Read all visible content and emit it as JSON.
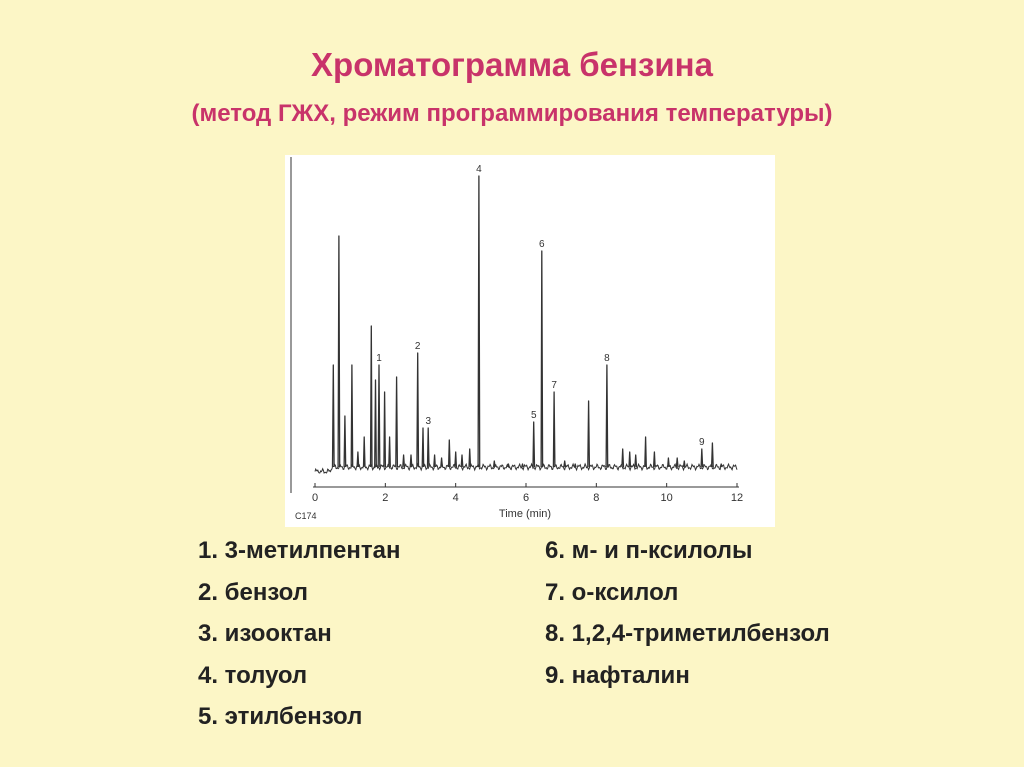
{
  "slide": {
    "title": "Хроматограмма бензина",
    "subtitle": "(метод ГЖХ,  режим программирования температуры)"
  },
  "colors": {
    "background": "#fcf6c6",
    "title": "#c8336a",
    "trace": "#333333"
  },
  "chart_data": {
    "type": "line",
    "xlabel": "Time (min)",
    "ylabel": "",
    "xlim": [
      0,
      12
    ],
    "ylim": [
      0,
      1
    ],
    "x_ticks": [
      0,
      2,
      4,
      6,
      8,
      10,
      12
    ],
    "x_tick_labels": [
      "0",
      "2",
      "4",
      "6",
      "8",
      "10",
      "12"
    ],
    "corner_label": "C174",
    "grid": false,
    "baseline": 0.02,
    "peak_width_min": 0.022,
    "peaks": [
      {
        "x": 0.52,
        "h": 0.36
      },
      {
        "x": 0.68,
        "h": 0.79
      },
      {
        "x": 0.85,
        "h": 0.19
      },
      {
        "x": 1.05,
        "h": 0.36
      },
      {
        "x": 1.22,
        "h": 0.07
      },
      {
        "x": 1.4,
        "h": 0.12
      },
      {
        "x": 1.6,
        "h": 0.49
      },
      {
        "x": 1.72,
        "h": 0.31
      },
      {
        "x": 1.82,
        "h": 0.36,
        "label": "1"
      },
      {
        "x": 1.98,
        "h": 0.27
      },
      {
        "x": 2.12,
        "h": 0.12
      },
      {
        "x": 2.32,
        "h": 0.32
      },
      {
        "x": 2.52,
        "h": 0.06
      },
      {
        "x": 2.73,
        "h": 0.06
      },
      {
        "x": 2.92,
        "h": 0.4,
        "label": "2"
      },
      {
        "x": 3.07,
        "h": 0.15
      },
      {
        "x": 3.22,
        "h": 0.15,
        "label": "3"
      },
      {
        "x": 3.4,
        "h": 0.06
      },
      {
        "x": 3.6,
        "h": 0.05
      },
      {
        "x": 3.82,
        "h": 0.11
      },
      {
        "x": 4.0,
        "h": 0.07
      },
      {
        "x": 4.18,
        "h": 0.06
      },
      {
        "x": 4.4,
        "h": 0.08
      },
      {
        "x": 4.66,
        "h": 0.99,
        "label": "4"
      },
      {
        "x": 5.1,
        "h": 0.04
      },
      {
        "x": 5.5,
        "h": 0.03
      },
      {
        "x": 5.9,
        "h": 0.03
      },
      {
        "x": 6.22,
        "h": 0.17,
        "label": "5"
      },
      {
        "x": 6.45,
        "h": 0.74,
        "label": "6"
      },
      {
        "x": 6.8,
        "h": 0.27,
        "label": "7"
      },
      {
        "x": 7.1,
        "h": 0.04
      },
      {
        "x": 7.4,
        "h": 0.03
      },
      {
        "x": 7.78,
        "h": 0.24
      },
      {
        "x": 8.3,
        "h": 0.36,
        "label": "8"
      },
      {
        "x": 8.75,
        "h": 0.08
      },
      {
        "x": 8.95,
        "h": 0.07
      },
      {
        "x": 9.12,
        "h": 0.06
      },
      {
        "x": 9.4,
        "h": 0.12
      },
      {
        "x": 9.65,
        "h": 0.07
      },
      {
        "x": 10.05,
        "h": 0.05
      },
      {
        "x": 10.3,
        "h": 0.05
      },
      {
        "x": 10.5,
        "h": 0.04
      },
      {
        "x": 11.0,
        "h": 0.08,
        "label": "9"
      },
      {
        "x": 11.3,
        "h": 0.1
      },
      {
        "x": 11.55,
        "h": 0.03
      }
    ]
  },
  "legend": {
    "left": [
      "1. 3-метилпентан",
      "2. бензол",
      "3. изооктан",
      "4. толуол",
      "5. этилбензол"
    ],
    "right": [
      "6. м- и п-ксилолы",
      "7. о-ксилол",
      "8. 1,2,4-триметилбензол",
      "9. нафталин"
    ]
  }
}
